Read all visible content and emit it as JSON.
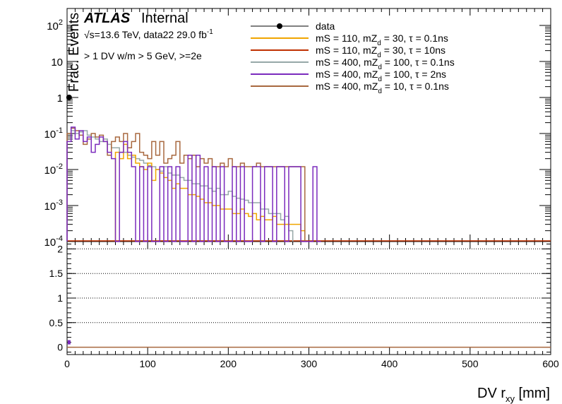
{
  "chart_data": {
    "type": "line",
    "header": {
      "experiment": "ATLAS",
      "status": "Internal",
      "energy_prefix": "√s=13.6 TeV, data22 29.0 fb",
      "energy_sup": "-1",
      "selection": "> 1 DV w/m > 5 GeV, >=2e"
    },
    "xlabel_main": "DV r",
    "xlabel_sub": "xy",
    "xlabel_unit": " [mm]",
    "ylabel": "Frac. Events",
    "xlim": [
      0,
      600
    ],
    "x_ticks": [
      "0",
      "100",
      "200",
      "300",
      "400",
      "500",
      "600"
    ],
    "top_panel": {
      "yscale": "log",
      "ylim": [
        0.0001,
        300
      ],
      "y_ticks": [
        {
          "base": "10",
          "exp": "-4",
          "value": 0.0001
        },
        {
          "base": "10",
          "exp": "-3",
          "value": 0.001
        },
        {
          "base": "10",
          "exp": "-2",
          "value": 0.01
        },
        {
          "base": "10",
          "exp": "-1",
          "value": 0.1
        },
        {
          "base": "1",
          "exp": "",
          "value": 1
        },
        {
          "base": "10",
          "exp": "",
          "value": 10
        },
        {
          "base": "10",
          "exp": "2",
          "value": 100
        }
      ]
    },
    "bottom_panel": {
      "ylim": [
        -0.15,
        2.15
      ],
      "y_ticks": [
        "0",
        "0.5",
        "1",
        "1.5",
        "2"
      ],
      "grid_lines": [
        0.5,
        1,
        1.5,
        2
      ]
    },
    "legend": {
      "placement": "top-right",
      "entries": [
        {
          "key": "data",
          "label": "data",
          "style": "marker",
          "color": "#000000"
        },
        {
          "key": "s1",
          "label": "mS = 110, mZ",
          "sub": "d",
          "rest": " = 30, τ = 0.1ns",
          "color": "#f0a500"
        },
        {
          "key": "s2",
          "label": "mS = 110, mZ",
          "sub": "d",
          "rest": " = 30, τ = 10ns",
          "color": "#c03000"
        },
        {
          "key": "s3",
          "label": "mS = 400, mZ",
          "sub": "d",
          "rest": " = 100, τ = 0.1ns",
          "color": "#96a8a8"
        },
        {
          "key": "s4",
          "label": "mS = 400, mZ",
          "sub": "d",
          "rest": " = 100, τ = 2ns",
          "color": "#7b2bbd"
        },
        {
          "key": "s5",
          "label": "mS = 400, mZ",
          "sub": "d",
          "rest": " = 10, τ = 0.1ns",
          "color": "#a8683f"
        }
      ]
    },
    "bin_width": 5,
    "data_points": [
      {
        "x": 2.5,
        "y": 1.0
      }
    ],
    "series": [
      {
        "name": "mS = 400, mZd = 100, τ = 0.1ns",
        "color": "#96a8a8",
        "x": [
          0,
          5,
          10,
          15,
          20,
          25,
          30,
          35,
          40,
          45,
          50,
          55,
          60,
          65,
          70,
          75,
          80,
          85,
          90,
          95,
          100,
          105,
          110,
          115,
          120,
          125,
          130,
          135,
          140,
          145,
          150,
          155,
          160,
          165,
          170,
          175,
          180,
          185,
          190,
          195,
          200,
          205,
          210,
          215,
          220,
          225,
          230,
          235,
          240,
          245,
          250,
          255,
          260,
          265,
          270,
          275
        ],
        "y": [
          0.1,
          0.12,
          0.1,
          0.11,
          0.12,
          0.09,
          0.08,
          0.07,
          0.06,
          0.07,
          0.05,
          0.04,
          0.04,
          0.03,
          0.03,
          0.025,
          0.022,
          0.02,
          0.018,
          0.015,
          0.013,
          0.012,
          0.01,
          0.009,
          0.012,
          0.008,
          0.007,
          0.007,
          0.006,
          0.005,
          0.005,
          0.004,
          0.004,
          0.0035,
          0.0035,
          0.003,
          0.0025,
          0.003,
          0.002,
          0.002,
          0.0025,
          0.0018,
          0.0016,
          0.0015,
          0.0014,
          0.0012,
          0.0012,
          0.0012,
          0.0008,
          0.0008,
          0.0006,
          0.0006,
          0.0006,
          0.0004,
          0.0005,
          0.0002
        ]
      },
      {
        "name": "mS = 110, mZd = 30, τ = 0.1ns",
        "color": "#f0a500",
        "x": [
          60,
          65,
          70,
          75,
          80,
          85,
          90,
          95,
          100,
          105,
          110,
          115,
          120,
          125,
          130,
          135,
          140,
          145,
          150,
          155,
          160,
          165,
          170,
          175,
          180,
          185,
          190,
          195,
          200,
          205,
          210,
          215,
          220,
          225,
          230,
          235,
          240,
          245,
          250,
          255,
          260,
          265,
          270,
          275,
          280,
          285,
          290
        ],
        "y": [
          0.03,
          0.02,
          0.05,
          0.02,
          0.025,
          0.015,
          0.012,
          0.01,
          0.015,
          0.005,
          0.01,
          0.008,
          0.006,
          0.005,
          0.003,
          0.004,
          0.003,
          0.003,
          0.002,
          0.002,
          0.0018,
          0.0015,
          0.0012,
          0.0012,
          0.001,
          0.001,
          0.0008,
          0.0008,
          0.0008,
          0.0006,
          0.0006,
          0.0008,
          0.0006,
          0.0005,
          0.0006,
          0.0004,
          0.0005,
          0.0004,
          0.0004,
          0.0005,
          0.0003,
          0.0003,
          0.0003,
          0.0003,
          0.0003,
          0.0003,
          0.0002
        ]
      },
      {
        "name": "mS = 400, mZd = 10, τ = 0.1ns",
        "color": "#a8683f",
        "x": [
          0,
          5,
          10,
          15,
          20,
          25,
          30,
          35,
          40,
          45,
          50,
          55,
          60,
          65,
          70,
          75,
          80,
          85,
          90,
          95,
          100,
          105,
          110,
          115,
          120,
          125,
          130,
          135,
          140,
          145,
          150,
          155,
          160,
          165,
          170,
          175,
          180,
          185,
          190,
          195,
          200,
          205,
          210,
          215,
          220,
          225,
          230,
          235,
          240,
          245,
          250,
          255,
          260,
          265,
          270,
          275,
          280,
          285,
          290
        ],
        "y": [
          0.1,
          0.14,
          0.12,
          0.09,
          0.05,
          0.07,
          0.1,
          0.08,
          0.09,
          0.06,
          0.025,
          0.06,
          0.08,
          0.06,
          0.1,
          0.04,
          0.06,
          0.1,
          0.03,
          0.025,
          0.02,
          0.06,
          0.025,
          0.06,
          0.015,
          0.02,
          0.025,
          0.06,
          0.015,
          0.025,
          0.02,
          0.025,
          0.012,
          0.02,
          0.015,
          0.02,
          0.012,
          0.012,
          0.015,
          0.012,
          0.02,
          0.012,
          0.012,
          0.015,
          0.012,
          0.012,
          0.012,
          0.015,
          0.012,
          0.012,
          0.012,
          0.012,
          0.012,
          0.012,
          0.012,
          0.012,
          0.012,
          0.012,
          0.012
        ]
      },
      {
        "name": "mS = 400, mZd = 100, τ = 2ns",
        "color": "#7b2bbd",
        "x": [
          0,
          5,
          10,
          15,
          20,
          25,
          30,
          35,
          40,
          45,
          50,
          55,
          60,
          65,
          70,
          75,
          80,
          85,
          90,
          95,
          100,
          105,
          110,
          115,
          120,
          125,
          130,
          135,
          140,
          145,
          150,
          155,
          160,
          165,
          170,
          175,
          180,
          185,
          190,
          195,
          200,
          205,
          210,
          215,
          220,
          225,
          230,
          235,
          240,
          245,
          250,
          255,
          260,
          265,
          270,
          275,
          280,
          285,
          290,
          295,
          300,
          305,
          310
        ],
        "y": [
          0.06,
          0.15,
          0.07,
          0.12,
          0.06,
          0.08,
          0.03,
          0.05,
          0.08,
          0.06,
          0.03,
          0.02,
          0.0001,
          0.03,
          0.06,
          0.03,
          0.012,
          0.0001,
          0.012,
          0.0001,
          0.012,
          0.0001,
          0.0001,
          0.012,
          0.0001,
          0.012,
          0.0001,
          0.012,
          0.0001,
          0.0001,
          0.025,
          0.0001,
          0.025,
          0.0001,
          0.012,
          0.0001,
          0.012,
          0.0001,
          0.012,
          0.0001,
          0.0001,
          0.012,
          0.0001,
          0.012,
          0.0001,
          0.0001,
          0.012,
          0.012,
          0.0001,
          0.012,
          0.012,
          0.0001,
          0.012,
          0.012,
          0.0001,
          0.012,
          0.012,
          0.012,
          0.0001,
          0.0001,
          0.0001,
          0.012,
          0.0001
        ]
      },
      {
        "name": "mS = 110, mZd = 30, τ = 10ns",
        "color": "#c03000",
        "x": [],
        "y": []
      }
    ],
    "ratio_points": [
      {
        "x": 2.5,
        "y": 0.1
      }
    ]
  }
}
